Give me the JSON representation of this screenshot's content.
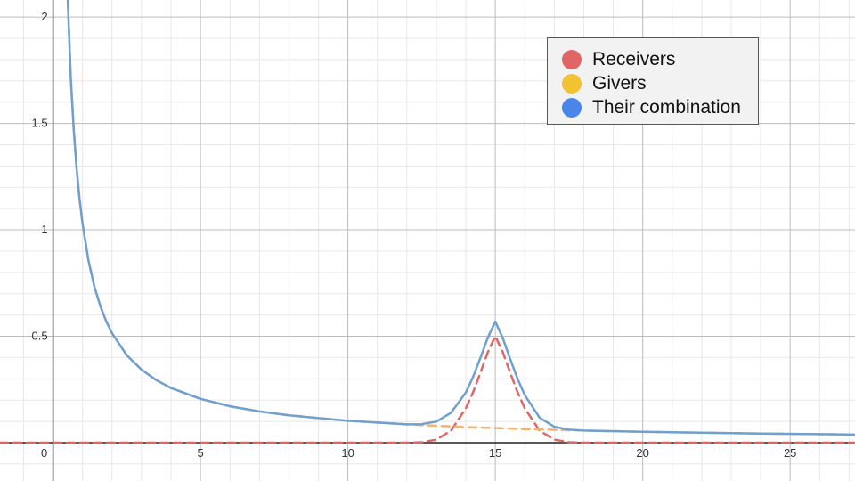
{
  "chart_data": {
    "type": "line",
    "title": "",
    "xlabel": "",
    "ylabel": "",
    "xlim": [
      -1.8,
      27.2
    ],
    "ylim": [
      -0.18,
      2.08
    ],
    "grid": true,
    "legend_position": "top-right",
    "x_ticks": [
      {
        "value": 5,
        "label": "5"
      },
      {
        "value": 10,
        "label": "10"
      },
      {
        "value": 15,
        "label": "15"
      },
      {
        "value": 20,
        "label": "20"
      },
      {
        "value": 25,
        "label": "25"
      }
    ],
    "origin_label": "0",
    "y_ticks": [
      {
        "value": 0.5,
        "label": "0.5"
      },
      {
        "value": 1,
        "label": "1"
      },
      {
        "value": 1.5,
        "label": "1.5"
      },
      {
        "value": 2,
        "label": "2"
      }
    ],
    "series": [
      {
        "name": "Receivers",
        "color": "#e06666",
        "legend_color": "#e06666",
        "dashed": true,
        "x": [
          -1.8,
          12,
          12.5,
          13,
          13.5,
          14,
          14.25,
          14.5,
          14.75,
          15,
          15.25,
          15.5,
          15.75,
          16,
          16.5,
          17,
          17.5,
          18,
          27.2
        ],
        "y": [
          0,
          0,
          0.002,
          0.014,
          0.057,
          0.162,
          0.238,
          0.331,
          0.427,
          0.5,
          0.427,
          0.331,
          0.238,
          0.162,
          0.057,
          0.014,
          0.002,
          0,
          0
        ]
      },
      {
        "name": "Givers",
        "color": "#f6b26b",
        "legend_color": "#f1c232",
        "dashed": true,
        "x": [
          0.5,
          0.6,
          0.7,
          0.8,
          0.9,
          1,
          1.2,
          1.4,
          1.6,
          1.8,
          2,
          2.5,
          3,
          3.5,
          4,
          5,
          6,
          7,
          8,
          10,
          12,
          14,
          15,
          16,
          18,
          20,
          22,
          24,
          26,
          27.2
        ],
        "y": [
          2.08,
          1.72,
          1.47,
          1.285,
          1.142,
          1.028,
          0.857,
          0.734,
          0.643,
          0.571,
          0.514,
          0.411,
          0.343,
          0.294,
          0.257,
          0.206,
          0.171,
          0.147,
          0.129,
          0.103,
          0.086,
          0.073,
          0.069,
          0.064,
          0.057,
          0.051,
          0.047,
          0.043,
          0.04,
          0.038
        ]
      },
      {
        "name": "Their combination",
        "color": "#6fa0d0",
        "legend_color": "#4a86e8",
        "dashed": false,
        "x": [
          0.5,
          0.6,
          0.7,
          0.8,
          0.9,
          1,
          1.2,
          1.4,
          1.6,
          1.8,
          2,
          2.5,
          3,
          3.5,
          4,
          5,
          6,
          7,
          8,
          10,
          12,
          12.5,
          13,
          13.5,
          14,
          14.25,
          14.5,
          14.75,
          15,
          15.25,
          15.5,
          15.75,
          16,
          16.5,
          17,
          17.5,
          18,
          20,
          22,
          24,
          26,
          27.2
        ],
        "y": [
          2.08,
          1.72,
          1.47,
          1.285,
          1.142,
          1.028,
          0.857,
          0.734,
          0.643,
          0.571,
          0.514,
          0.411,
          0.343,
          0.294,
          0.257,
          0.206,
          0.171,
          0.147,
          0.129,
          0.103,
          0.086,
          0.087,
          0.099,
          0.141,
          0.235,
          0.31,
          0.401,
          0.495,
          0.569,
          0.493,
          0.395,
          0.301,
          0.224,
          0.118,
          0.075,
          0.061,
          0.057,
          0.051,
          0.047,
          0.043,
          0.04,
          0.038
        ]
      }
    ]
  }
}
